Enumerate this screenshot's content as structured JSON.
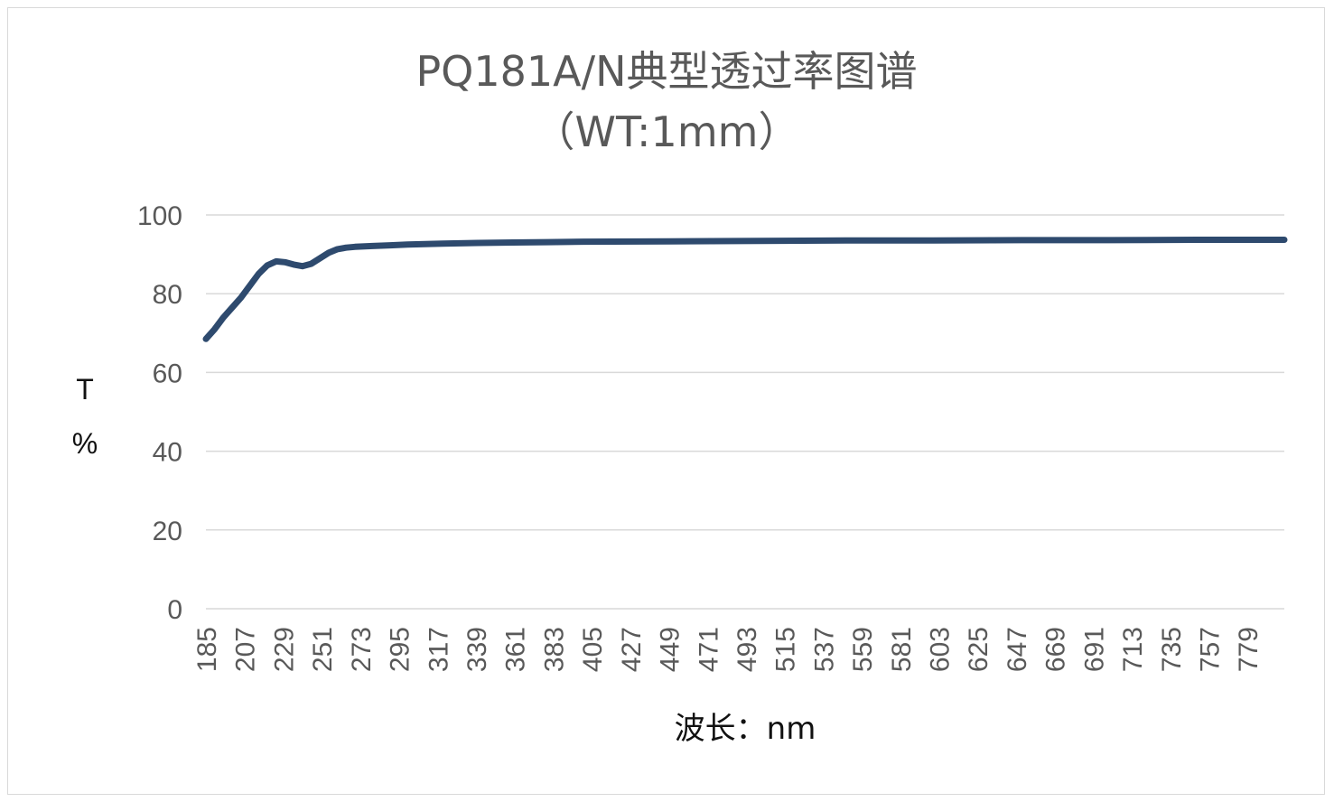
{
  "chart_data": {
    "type": "line",
    "title": "PQ181A/N典型透过率图谱",
    "subtitle": "（WT:1mm）",
    "xlabel": "波长：nm",
    "ylabel_line1": "T",
    "ylabel_line2": "%",
    "ylim": [
      0,
      100
    ],
    "yticks": [
      "0",
      "20",
      "40",
      "60",
      "80",
      "100"
    ],
    "xticks": [
      "185",
      "207",
      "229",
      "251",
      "273",
      "295",
      "317",
      "339",
      "361",
      "383",
      "405",
      "427",
      "449",
      "471",
      "493",
      "515",
      "537",
      "559",
      "581",
      "603",
      "625",
      "647",
      "669",
      "691",
      "713",
      "735",
      "757",
      "779"
    ],
    "xlim": [
      185,
      800
    ],
    "grid": true,
    "legend": "none",
    "colors": {
      "series": "#2e4a6e",
      "grid": "#d9d9d9",
      "text": "#595959"
    },
    "series": [
      {
        "x": [
          185,
          190,
          195,
          200,
          205,
          210,
          215,
          220,
          225,
          230,
          235,
          240,
          245,
          250,
          255,
          260,
          265,
          270,
          280,
          290,
          300,
          310,
          320,
          330,
          340,
          360,
          380,
          400,
          450,
          500,
          550,
          600,
          650,
          700,
          750,
          800
        ],
        "values": [
          68.5,
          71,
          74,
          76.5,
          79,
          82,
          85,
          87.2,
          88.2,
          88.0,
          87.4,
          87.0,
          87.6,
          89,
          90.4,
          91.3,
          91.7,
          91.9,
          92.1,
          92.3,
          92.5,
          92.6,
          92.7,
          92.8,
          92.9,
          93.0,
          93.1,
          93.2,
          93.3,
          93.4,
          93.5,
          93.5,
          93.6,
          93.6,
          93.7,
          93.7
        ]
      }
    ]
  }
}
